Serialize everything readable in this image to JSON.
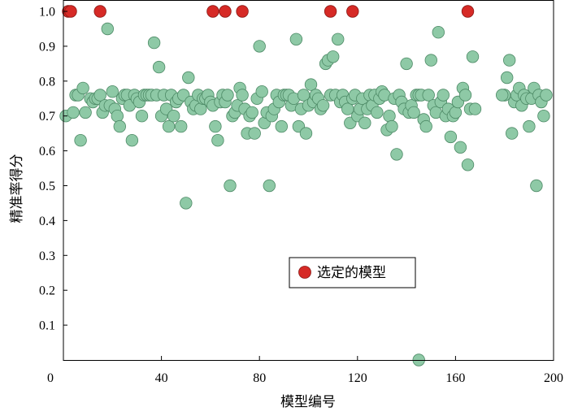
{
  "chart_data": {
    "type": "scatter",
    "xlabel": "模型编号",
    "ylabel": "精准率得分",
    "xlim": [
      0,
      200
    ],
    "ylim": [
      0,
      1.0
    ],
    "x_ticks": [
      "0",
      "40",
      "80",
      "120",
      "160",
      "200"
    ],
    "y_ticks": [
      "0.1",
      "0.2",
      "0.3",
      "0.4",
      "0.5",
      "0.6",
      "0.7",
      "0.8",
      "0.9",
      "1.0"
    ],
    "legend": {
      "position": "center-right",
      "label": "选定的模型"
    },
    "colors": {
      "regular": "#8ec9a6",
      "regular_edge": "#4d8a66",
      "selected": "#d62a26",
      "selected_edge": "#8b1a17"
    },
    "series": [
      {
        "name": "",
        "points": [
          [
            1,
            0.7
          ],
          [
            4,
            0.71
          ],
          [
            5,
            0.76
          ],
          [
            6,
            0.76
          ],
          [
            7,
            0.63
          ],
          [
            8,
            0.78
          ],
          [
            9,
            0.71
          ],
          [
            11,
            0.75
          ],
          [
            12,
            0.74
          ],
          [
            13,
            0.75
          ],
          [
            14,
            0.75
          ],
          [
            15,
            0.76
          ],
          [
            16,
            0.71
          ],
          [
            17,
            0.73
          ],
          [
            18,
            0.95
          ],
          [
            19,
            0.73
          ],
          [
            20,
            0.77
          ],
          [
            21,
            0.72
          ],
          [
            22,
            0.7
          ],
          [
            23,
            0.67
          ],
          [
            24,
            0.75
          ],
          [
            25,
            0.76
          ],
          [
            26,
            0.76
          ],
          [
            27,
            0.73
          ],
          [
            28,
            0.63
          ],
          [
            29,
            0.76
          ],
          [
            30,
            0.75
          ],
          [
            31,
            0.74
          ],
          [
            32,
            0.7
          ],
          [
            33,
            0.76
          ],
          [
            34,
            0.76
          ],
          [
            35,
            0.76
          ],
          [
            36,
            0.76
          ],
          [
            37,
            0.91
          ],
          [
            38,
            0.76
          ],
          [
            39,
            0.84
          ],
          [
            40,
            0.7
          ],
          [
            41,
            0.76
          ],
          [
            42,
            0.72
          ],
          [
            43,
            0.67
          ],
          [
            44,
            0.76
          ],
          [
            45,
            0.7
          ],
          [
            46,
            0.74
          ],
          [
            47,
            0.75
          ],
          [
            48,
            0.67
          ],
          [
            49,
            0.76
          ],
          [
            50,
            0.45
          ],
          [
            51,
            0.81
          ],
          [
            52,
            0.74
          ],
          [
            53,
            0.72
          ],
          [
            54,
            0.73
          ],
          [
            55,
            0.76
          ],
          [
            56,
            0.72
          ],
          [
            57,
            0.75
          ],
          [
            58,
            0.75
          ],
          [
            59,
            0.76
          ],
          [
            60,
            0.74
          ],
          [
            61,
            0.73
          ],
          [
            62,
            0.67
          ],
          [
            63,
            0.63
          ],
          [
            64,
            0.74
          ],
          [
            65,
            0.76
          ],
          [
            66,
            0.74
          ],
          [
            67,
            0.76
          ],
          [
            68,
            0.5
          ],
          [
            69,
            0.7
          ],
          [
            70,
            0.71
          ],
          [
            71,
            0.73
          ],
          [
            72,
            0.78
          ],
          [
            73,
            0.76
          ],
          [
            74,
            0.72
          ],
          [
            75,
            0.65
          ],
          [
            76,
            0.7
          ],
          [
            77,
            0.71
          ],
          [
            78,
            0.65
          ],
          [
            79,
            0.75
          ],
          [
            80,
            0.9
          ],
          [
            81,
            0.77
          ],
          [
            82,
            0.68
          ],
          [
            83,
            0.71
          ],
          [
            84,
            0.5
          ],
          [
            85,
            0.7
          ],
          [
            86,
            0.72
          ],
          [
            87,
            0.76
          ],
          [
            88,
            0.74
          ],
          [
            89,
            0.67
          ],
          [
            90,
            0.76
          ],
          [
            91,
            0.76
          ],
          [
            92,
            0.76
          ],
          [
            93,
            0.73
          ],
          [
            94,
            0.75
          ],
          [
            95,
            0.92
          ],
          [
            96,
            0.67
          ],
          [
            97,
            0.72
          ],
          [
            98,
            0.76
          ],
          [
            99,
            0.65
          ],
          [
            100,
            0.73
          ],
          [
            101,
            0.79
          ],
          [
            102,
            0.74
          ],
          [
            103,
            0.76
          ],
          [
            104,
            0.75
          ],
          [
            105,
            0.72
          ],
          [
            106,
            0.73
          ],
          [
            107,
            0.85
          ],
          [
            108,
            0.86
          ],
          [
            109,
            0.76
          ],
          [
            110,
            0.87
          ],
          [
            111,
            0.76
          ],
          [
            112,
            0.92
          ],
          [
            113,
            0.74
          ],
          [
            114,
            0.76
          ],
          [
            115,
            0.74
          ],
          [
            116,
            0.72
          ],
          [
            117,
            0.68
          ],
          [
            118,
            0.75
          ],
          [
            119,
            0.76
          ],
          [
            120,
            0.7
          ],
          [
            121,
            0.72
          ],
          [
            122,
            0.75
          ],
          [
            123,
            0.68
          ],
          [
            124,
            0.72
          ],
          [
            125,
            0.76
          ],
          [
            126,
            0.73
          ],
          [
            127,
            0.76
          ],
          [
            128,
            0.71
          ],
          [
            129,
            0.75
          ],
          [
            130,
            0.77
          ],
          [
            131,
            0.76
          ],
          [
            132,
            0.66
          ],
          [
            133,
            0.7
          ],
          [
            134,
            0.67
          ],
          [
            135,
            0.75
          ],
          [
            136,
            0.59
          ],
          [
            137,
            0.76
          ],
          [
            138,
            0.74
          ],
          [
            139,
            0.72
          ],
          [
            140,
            0.85
          ],
          [
            141,
            0.71
          ],
          [
            142,
            0.73
          ],
          [
            143,
            0.71
          ],
          [
            144,
            0.76
          ],
          [
            145,
            0.76
          ],
          [
            146,
            0.76
          ],
          [
            147,
            0.69
          ],
          [
            148,
            0.67
          ],
          [
            149,
            0.76
          ],
          [
            150,
            0.86
          ],
          [
            151,
            0.73
          ],
          [
            152,
            0.71
          ],
          [
            153,
            0.94
          ],
          [
            154,
            0.74
          ],
          [
            155,
            0.76
          ],
          [
            156,
            0.7
          ],
          [
            157,
            0.72
          ],
          [
            158,
            0.64
          ],
          [
            159,
            0.7
          ],
          [
            160,
            0.71
          ],
          [
            161,
            0.74
          ],
          [
            162,
            0.61
          ],
          [
            163,
            0.78
          ],
          [
            164,
            0.76
          ],
          [
            165,
            0.56
          ],
          [
            166,
            0.72
          ],
          [
            167,
            0.87
          ],
          [
            168,
            0.72
          ],
          [
            180,
            0.76
          ],
          [
            181,
            0.81
          ],
          [
            182,
            0.86
          ],
          [
            183,
            0.65
          ],
          [
            184,
            0.74
          ],
          [
            185,
            0.76
          ],
          [
            186,
            0.78
          ],
          [
            187,
            0.73
          ],
          [
            188,
            0.76
          ],
          [
            189,
            0.75
          ],
          [
            190,
            0.67
          ],
          [
            191,
            0.75
          ],
          [
            192,
            0.78
          ],
          [
            193,
            0.5
          ],
          [
            194,
            0.76
          ],
          [
            195,
            0.74
          ],
          [
            196,
            0.7
          ],
          [
            197,
            0.76
          ],
          [
            145,
            0.0
          ],
          [
            179,
            0.76
          ]
        ]
      },
      {
        "name": "选定的模型",
        "points": [
          [
            2,
            1.0
          ],
          [
            3,
            1.0
          ],
          [
            15,
            1.0
          ],
          [
            61,
            1.0
          ],
          [
            66,
            1.0
          ],
          [
            73,
            1.0
          ],
          [
            109,
            1.0
          ],
          [
            118,
            1.0
          ],
          [
            165,
            1.0
          ]
        ]
      }
    ]
  }
}
